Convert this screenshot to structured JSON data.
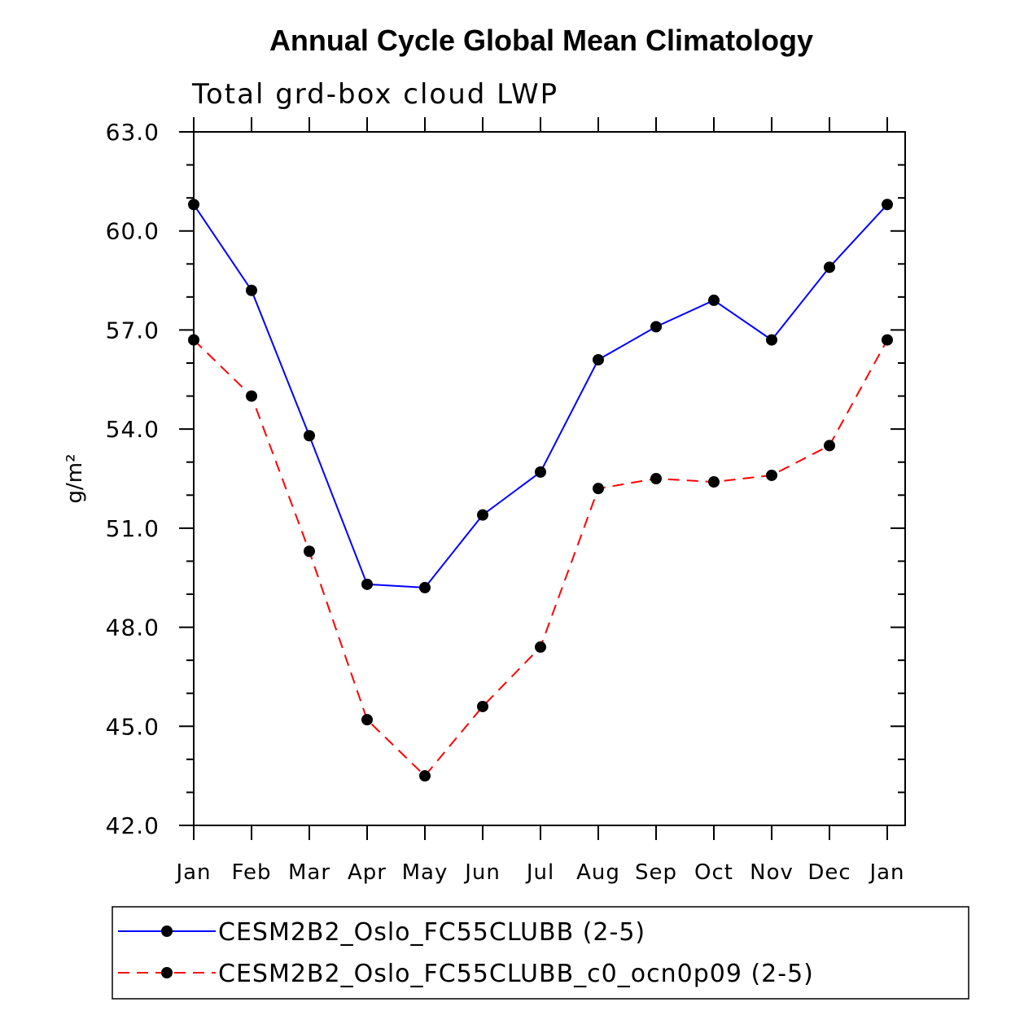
{
  "chart_data": {
    "type": "line",
    "title": "Annual Cycle Global Mean Climatology",
    "subtitle": "Total grd-box cloud LWP",
    "xlabel": "",
    "ylabel": "g/m²",
    "categories": [
      "Jan",
      "Feb",
      "Mar",
      "Apr",
      "May",
      "Jun",
      "Jul",
      "Aug",
      "Sep",
      "Oct",
      "Nov",
      "Dec",
      "Jan"
    ],
    "ylim": [
      42.0,
      63.0
    ],
    "yticks": [
      "42.0",
      "45.0",
      "48.0",
      "51.0",
      "54.0",
      "57.0",
      "60.0",
      "63.0"
    ],
    "series": [
      {
        "name": "CESM2B2_Oslo_FC55CLUBB (2-5)",
        "color": "#0000ff",
        "dash": "solid",
        "values": [
          60.8,
          58.2,
          53.8,
          49.3,
          49.2,
          51.4,
          52.7,
          56.1,
          57.1,
          57.9,
          56.7,
          58.9,
          60.8
        ]
      },
      {
        "name": "CESM2B2_Oslo_FC55CLUBB_c0_ocn0p09 (2-5)",
        "color": "#ff0000",
        "dash": "dashed",
        "values": [
          56.7,
          55.0,
          50.3,
          45.2,
          43.5,
          45.6,
          47.4,
          52.2,
          52.5,
          52.4,
          52.6,
          53.5,
          56.7
        ]
      }
    ],
    "marker_color": "#000000",
    "legend_position": "bottom"
  }
}
